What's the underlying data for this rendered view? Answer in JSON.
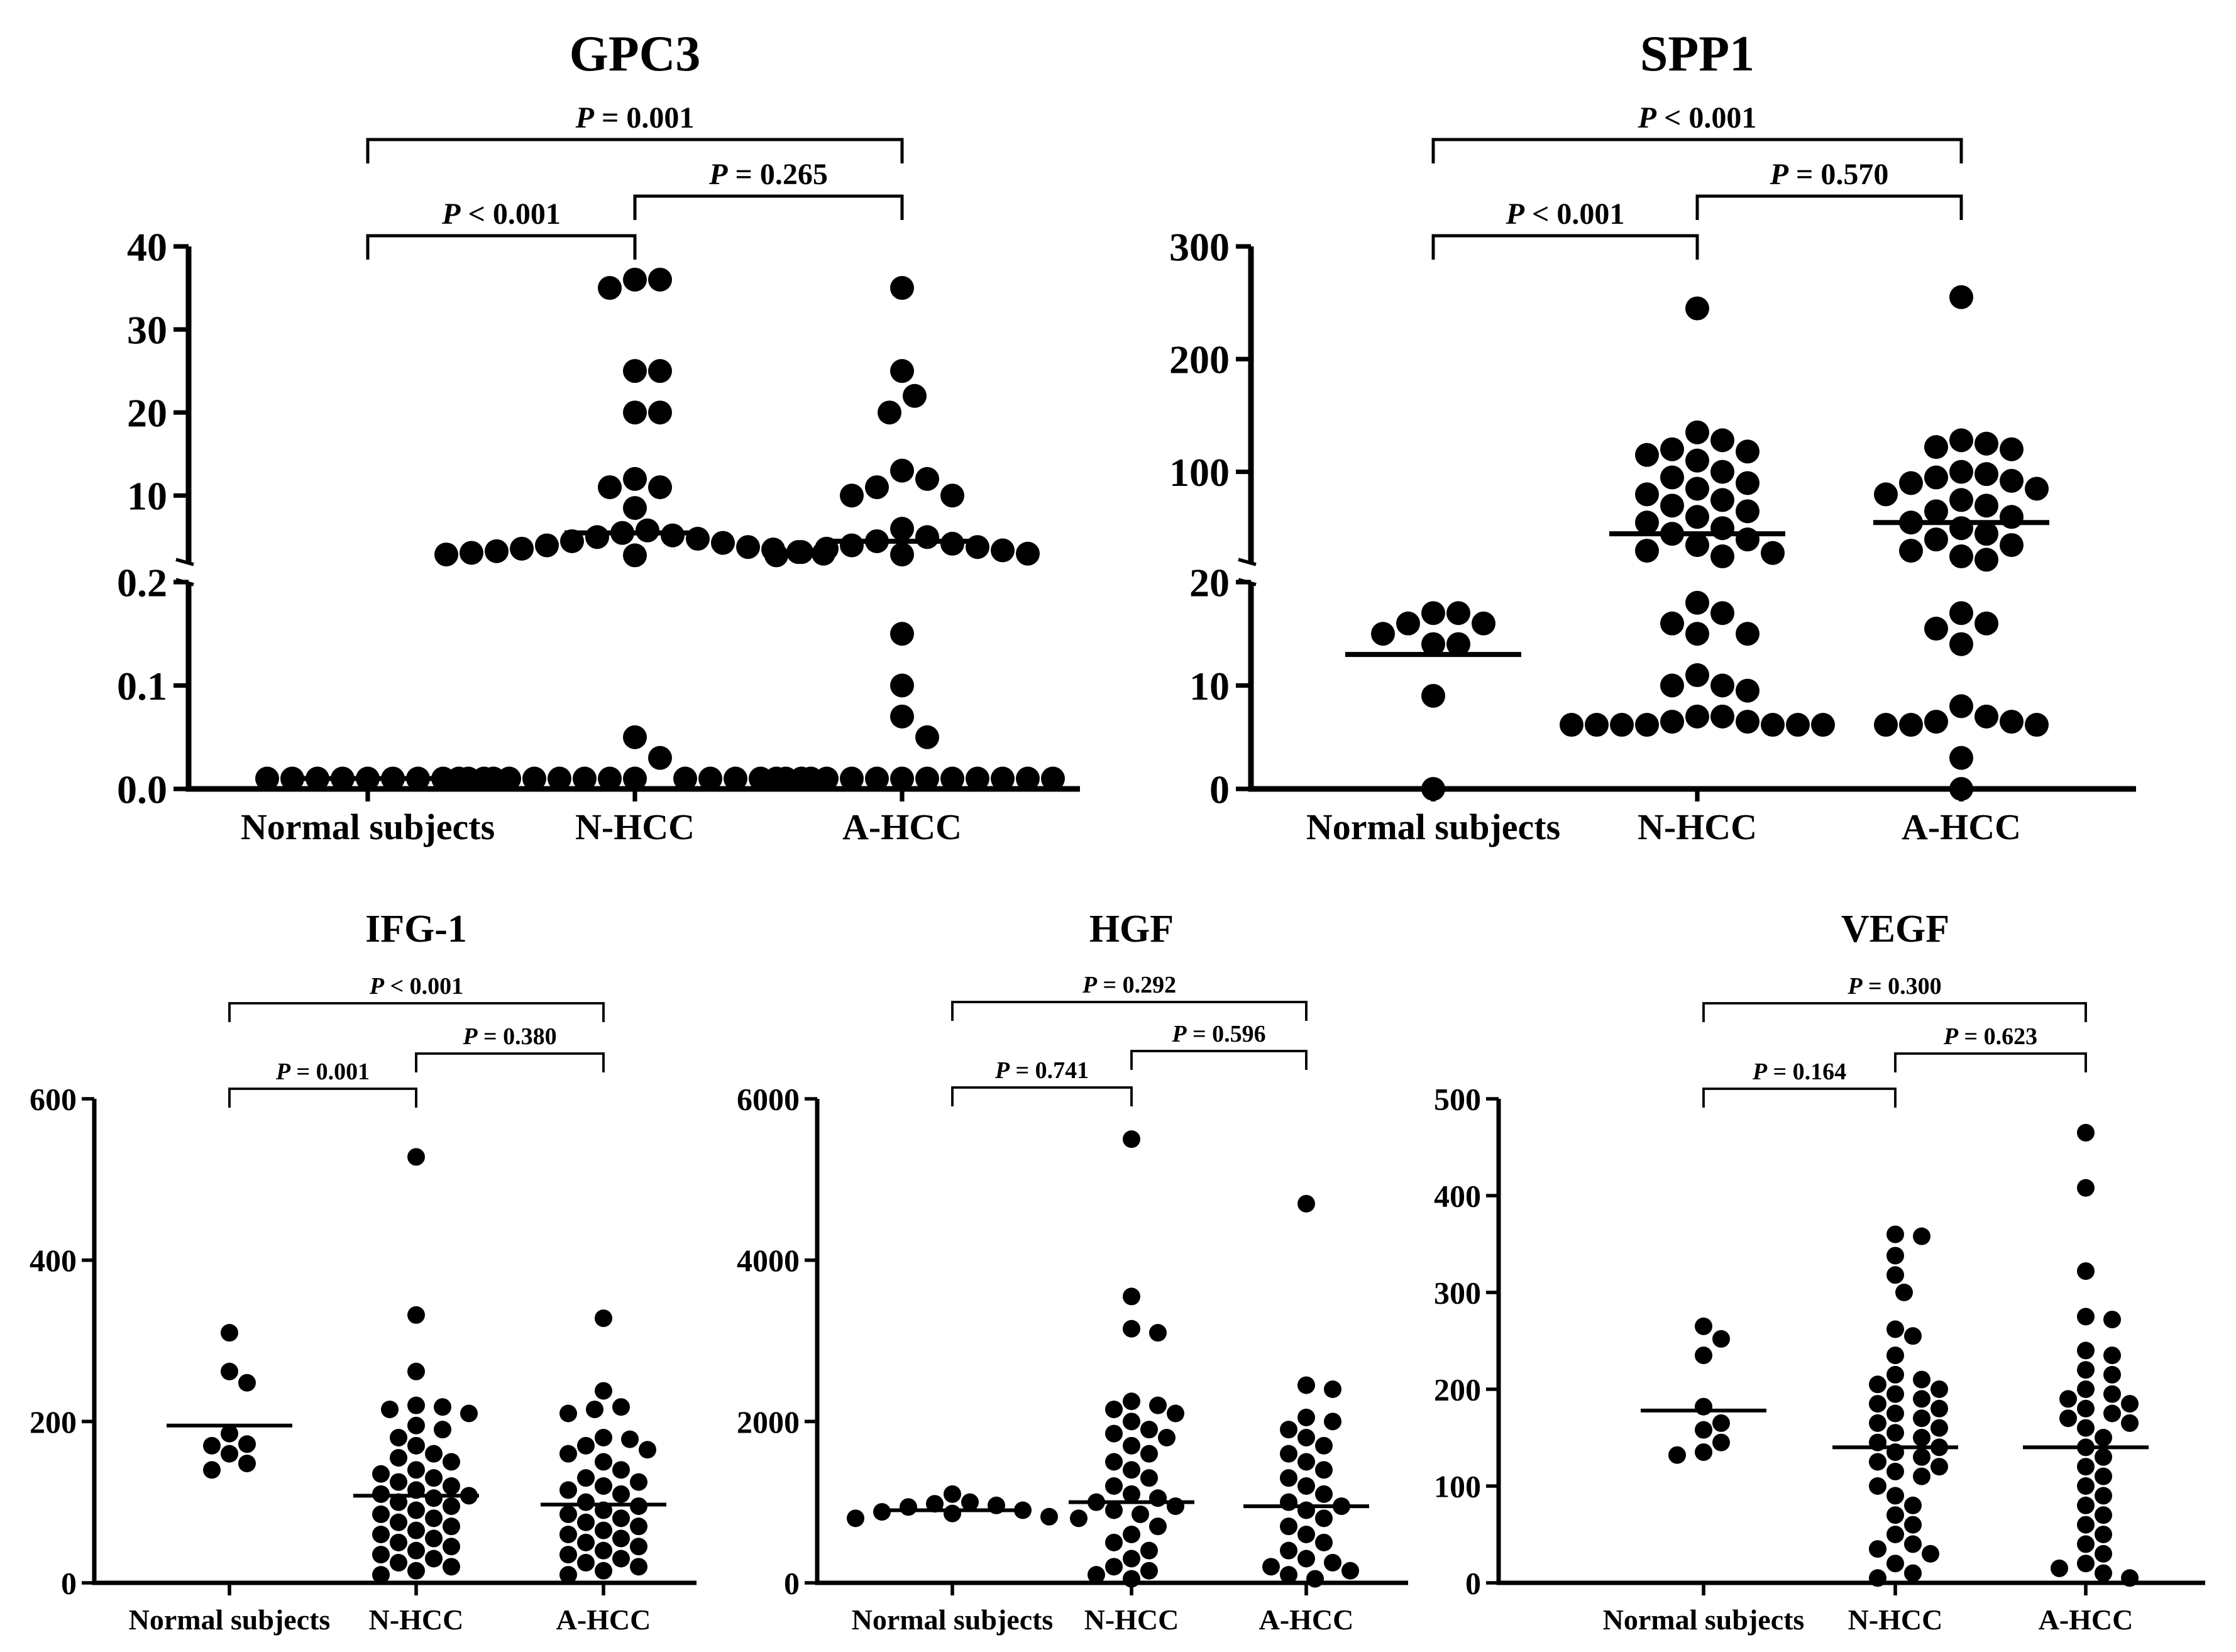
{
  "chart_data": [
    {
      "id": "gpc3",
      "type": "scatter",
      "subtype": "dot-plot with broken y-axis",
      "title": "GPC3",
      "xlabel": "",
      "ylabel": "",
      "categories": [
        "Normal subjects",
        "N-HCC",
        "A-HCC"
      ],
      "y_axis_lower": {
        "ylim": [
          0,
          0.2
        ],
        "ticks": [
          "0.0",
          "0.1",
          "0.2"
        ],
        "tick_values": [
          0,
          0.1,
          0.2
        ]
      },
      "y_axis_upper": {
        "ylim": [
          2,
          40
        ],
        "ticks": [
          "10",
          "20",
          "30",
          "40"
        ],
        "tick_values": [
          10,
          20,
          30,
          40
        ]
      },
      "means": [
        0.01,
        5.5,
        4.5
      ],
      "series": [
        {
          "name": "Normal subjects",
          "values": [
            0.01,
            0.01,
            0.01,
            0.01,
            0.01,
            0.01,
            0.01,
            0.01,
            0.01,
            0.01
          ]
        },
        {
          "name": "N-HCC",
          "values": [
            36,
            36,
            35,
            25,
            25,
            20,
            20,
            12,
            11,
            11,
            8.5,
            5.8,
            5.5,
            5.2,
            5.0,
            4.8,
            4.5,
            4.3,
            4.0,
            3.8,
            3.6,
            3.5,
            3.3,
            3.2,
            3.1,
            3.0,
            2.9,
            2.8,
            0.05,
            0.03,
            0.01,
            0.01,
            0.01,
            0.01,
            0.01,
            0.01,
            0.01,
            0.01,
            0.01,
            0.01,
            0.01,
            0.01,
            0.01,
            0.01
          ]
        },
        {
          "name": "A-HCC",
          "values": [
            35,
            25,
            22,
            20,
            13,
            12,
            11,
            10,
            10,
            6.0,
            5.0,
            4.5,
            4.2,
            4.0,
            3.8,
            3.6,
            3.4,
            3.2,
            3.0,
            2.9,
            2.8,
            0.15,
            0.1,
            0.07,
            0.05,
            0.01,
            0.01,
            0.01,
            0.01,
            0.01,
            0.01,
            0.01,
            0.01,
            0.01,
            0.01,
            0.01,
            0.01
          ]
        }
      ],
      "comparisons": [
        {
          "from": "Normal subjects",
          "to": "A-HCC",
          "label": "P = 0.001",
          "level": 1
        },
        {
          "from": "N-HCC",
          "to": "A-HCC",
          "label": "P = 0.265",
          "level": 2
        },
        {
          "from": "Normal subjects",
          "to": "N-HCC",
          "label": "P < 0.001",
          "level": 3
        }
      ]
    },
    {
      "id": "spp1",
      "type": "scatter",
      "subtype": "dot-plot with broken y-axis",
      "title": "SPP1",
      "xlabel": "",
      "ylabel": "",
      "categories": [
        "Normal subjects",
        "N-HCC",
        "A-HCC"
      ],
      "y_axis_lower": {
        "ylim": [
          0,
          20
        ],
        "ticks": [
          "0",
          "10",
          "20"
        ],
        "tick_values": [
          0,
          10,
          20
        ]
      },
      "y_axis_upper": {
        "ylim": [
          20,
          300
        ],
        "ticks": [
          "100",
          "200",
          "300"
        ],
        "tick_values": [
          100,
          200,
          300
        ]
      },
      "means": [
        13,
        45,
        55
      ],
      "series": [
        {
          "name": "Normal subjects",
          "values": [
            17,
            17,
            16,
            16,
            15,
            14,
            14,
            9,
            0
          ]
        },
        {
          "name": "N-HCC",
          "values": [
            245,
            135,
            128,
            120,
            118,
            115,
            110,
            100,
            95,
            90,
            85,
            80,
            75,
            70,
            65,
            60,
            55,
            50,
            45,
            40,
            35,
            30,
            28,
            25,
            18,
            17,
            16,
            15,
            15,
            11,
            10,
            10,
            9.5,
            7,
            7,
            6.5,
            6.5,
            6.2,
            6.2,
            6.2,
            6.2,
            6.2,
            6.2,
            6.2
          ]
        },
        {
          "name": "A-HCC",
          "values": [
            255,
            128,
            125,
            122,
            120,
            100,
            98,
            95,
            92,
            90,
            85,
            80,
            75,
            70,
            65,
            60,
            55,
            50,
            45,
            40,
            35,
            30,
            25,
            22,
            17,
            16,
            15.5,
            14,
            8,
            7,
            6.5,
            6.5,
            6.2,
            6.2,
            6.2,
            3,
            0
          ]
        }
      ],
      "comparisons": [
        {
          "from": "Normal subjects",
          "to": "A-HCC",
          "label": "P < 0.001",
          "level": 1
        },
        {
          "from": "N-HCC",
          "to": "A-HCC",
          "label": "P = 0.570",
          "level": 2
        },
        {
          "from": "Normal subjects",
          "to": "N-HCC",
          "label": "P < 0.001",
          "level": 3
        }
      ]
    },
    {
      "id": "igf1",
      "type": "scatter",
      "subtype": "dot-plot",
      "title": "IFG-1",
      "xlabel": "",
      "ylabel": "",
      "categories": [
        "Normal subjects",
        "N-HCC",
        "A-HCC"
      ],
      "ylim": [
        0,
        600
      ],
      "ticks": [
        "0",
        "200",
        "400",
        "600"
      ],
      "tick_values": [
        0,
        200,
        400,
        600
      ],
      "means": [
        195,
        108,
        97
      ],
      "series": [
        {
          "name": "Normal subjects",
          "values": [
            310,
            262,
            248,
            185,
            172,
            170,
            160,
            148,
            140
          ]
        },
        {
          "name": "N-HCC",
          "values": [
            528,
            332,
            262,
            220,
            218,
            215,
            210,
            195,
            190,
            180,
            170,
            160,
            155,
            150,
            140,
            135,
            130,
            125,
            120,
            115,
            110,
            108,
            105,
            100,
            95,
            90,
            85,
            80,
            75,
            70,
            65,
            60,
            55,
            50,
            45,
            40,
            35,
            30,
            25,
            20,
            15,
            10
          ]
        },
        {
          "name": "A-HCC",
          "values": [
            328,
            238,
            218,
            215,
            210,
            180,
            178,
            170,
            165,
            160,
            150,
            140,
            130,
            125,
            120,
            115,
            110,
            100,
            95,
            90,
            85,
            80,
            75,
            70,
            65,
            60,
            55,
            50,
            45,
            40,
            35,
            30,
            25,
            20,
            15,
            10
          ]
        }
      ],
      "comparisons": [
        {
          "from": "Normal subjects",
          "to": "A-HCC",
          "label": "P < 0.001",
          "level": 1
        },
        {
          "from": "N-HCC",
          "to": "A-HCC",
          "label": "P = 0.380",
          "level": 2
        },
        {
          "from": "Normal subjects",
          "to": "N-HCC",
          "label": "P = 0.001",
          "level": 3
        }
      ]
    },
    {
      "id": "hgf",
      "type": "scatter",
      "subtype": "dot-plot",
      "title": "HGF",
      "xlabel": "",
      "ylabel": "",
      "categories": [
        "Normal subjects",
        "N-HCC",
        "A-HCC"
      ],
      "ylim": [
        0,
        6000
      ],
      "ticks": [
        "0",
        "2000",
        "4000",
        "6000"
      ],
      "tick_values": [
        0,
        2000,
        4000,
        6000
      ],
      "means": [
        900,
        1000,
        950
      ],
      "series": [
        {
          "name": "Normal subjects",
          "values": [
            1100,
            1000,
            980,
            960,
            940,
            900,
            880,
            860,
            820,
            800
          ]
        },
        {
          "name": "N-HCC",
          "values": [
            5500,
            3550,
            3150,
            3100,
            2250,
            2200,
            2150,
            2100,
            2000,
            1900,
            1850,
            1800,
            1700,
            1600,
            1500,
            1400,
            1300,
            1200,
            1100,
            1050,
            1000,
            950,
            900,
            850,
            800,
            700,
            600,
            500,
            400,
            300,
            200,
            150,
            100,
            50
          ]
        },
        {
          "name": "A-HCC",
          "values": [
            4700,
            2450,
            2400,
            2050,
            2000,
            1900,
            1800,
            1700,
            1600,
            1500,
            1400,
            1300,
            1200,
            1100,
            1000,
            950,
            900,
            800,
            700,
            600,
            500,
            400,
            300,
            250,
            200,
            150,
            100,
            50
          ]
        }
      ],
      "comparisons": [
        {
          "from": "Normal subjects",
          "to": "A-HCC",
          "label": "P = 0.292",
          "level": 1
        },
        {
          "from": "N-HCC",
          "to": "A-HCC",
          "label": "P = 0.596",
          "level": 2
        },
        {
          "from": "Normal subjects",
          "to": "N-HCC",
          "label": "P = 0.741",
          "level": 3
        }
      ]
    },
    {
      "id": "vegf",
      "type": "scatter",
      "subtype": "dot-plot",
      "title": "VEGF",
      "xlabel": "",
      "ylabel": "",
      "categories": [
        "Normal subjects",
        "N-HCC",
        "A-HCC"
      ],
      "ylim": [
        0,
        500
      ],
      "ticks": [
        "0",
        "100",
        "200",
        "300",
        "400",
        "500"
      ],
      "tick_values": [
        0,
        100,
        200,
        300,
        400,
        500
      ],
      "means": [
        178,
        140,
        140
      ],
      "series": [
        {
          "name": "Normal subjects",
          "values": [
            265,
            252,
            235,
            182,
            165,
            158,
            145,
            135,
            132
          ]
        },
        {
          "name": "N-HCC",
          "values": [
            360,
            358,
            338,
            318,
            300,
            262,
            255,
            235,
            215,
            210,
            205,
            200,
            195,
            190,
            185,
            180,
            175,
            170,
            165,
            160,
            155,
            150,
            145,
            140,
            135,
            130,
            125,
            120,
            115,
            110,
            100,
            90,
            80,
            70,
            60,
            50,
            40,
            35,
            30,
            20,
            10,
            5
          ]
        },
        {
          "name": "A-HCC",
          "values": [
            465,
            408,
            322,
            275,
            272,
            240,
            235,
            220,
            215,
            200,
            195,
            190,
            185,
            180,
            175,
            170,
            165,
            160,
            150,
            140,
            130,
            120,
            110,
            100,
            90,
            80,
            70,
            60,
            50,
            40,
            30,
            20,
            15,
            10,
            5
          ]
        }
      ],
      "comparisons": [
        {
          "from": "Normal subjects",
          "to": "A-HCC",
          "label": "P = 0.300",
          "level": 1
        },
        {
          "from": "N-HCC",
          "to": "A-HCC",
          "label": "P = 0.623",
          "level": 2
        },
        {
          "from": "Normal subjects",
          "to": "N-HCC",
          "label": "P = 0.164",
          "level": 3
        }
      ]
    }
  ]
}
